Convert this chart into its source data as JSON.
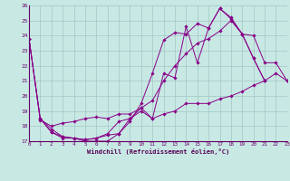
{
  "xlabel": "Windchill (Refroidissement éolien,°C)",
  "xlim": [
    0,
    23
  ],
  "ylim": [
    17,
    26
  ],
  "xticks": [
    0,
    1,
    2,
    3,
    4,
    5,
    6,
    7,
    8,
    9,
    10,
    11,
    12,
    13,
    14,
    15,
    16,
    17,
    18,
    19,
    20,
    21,
    22,
    23
  ],
  "yticks": [
    17,
    18,
    19,
    20,
    21,
    22,
    23,
    24,
    25,
    26
  ],
  "bg_color": "#c8e8e4",
  "grid_color": "#a0c8c4",
  "line_color": "#880088",
  "lines": [
    {
      "x": [
        0,
        1,
        2,
        3,
        4,
        5,
        6,
        7,
        8,
        9,
        10,
        11,
        12,
        13,
        14,
        15,
        16,
        17,
        18,
        19,
        20,
        21
      ],
      "y": [
        23.8,
        18.5,
        17.6,
        17.2,
        17.2,
        17.0,
        17.0,
        17.0,
        17.5,
        18.3,
        19.5,
        21.5,
        23.7,
        24.2,
        24.1,
        24.8,
        24.5,
        25.8,
        25.2,
        24.1,
        22.5,
        21.0
      ]
    },
    {
      "x": [
        0,
        1,
        2,
        3,
        4,
        5,
        6,
        7,
        8,
        9,
        10,
        11,
        12,
        13,
        14,
        15,
        16,
        17,
        18,
        19,
        20,
        21
      ],
      "y": [
        23.8,
        18.5,
        17.6,
        17.3,
        17.2,
        17.1,
        17.2,
        17.5,
        18.3,
        18.5,
        19.2,
        18.5,
        21.5,
        21.2,
        24.6,
        22.2,
        24.5,
        25.8,
        25.1,
        24.1,
        22.5,
        21.0
      ]
    },
    {
      "x": [
        1,
        2,
        3,
        4,
        5,
        6,
        7,
        8,
        9,
        10,
        11,
        12,
        13,
        14,
        15,
        16,
        17,
        18,
        19,
        20,
        21,
        22,
        23
      ],
      "y": [
        18.5,
        17.8,
        17.3,
        17.2,
        17.1,
        17.2,
        17.4,
        17.5,
        18.5,
        19.0,
        18.5,
        18.8,
        19.0,
        19.5,
        19.5,
        19.5,
        19.8,
        20.0,
        20.3,
        20.7,
        21.0,
        21.5,
        21.0
      ]
    },
    {
      "x": [
        0,
        1,
        2,
        3,
        4,
        5,
        6,
        7,
        8,
        9,
        10,
        11,
        12,
        13,
        14,
        15,
        16,
        17,
        18,
        19,
        20,
        21,
        22,
        23
      ],
      "y": [
        23.8,
        18.4,
        18.0,
        18.2,
        18.3,
        18.5,
        18.6,
        18.5,
        18.8,
        18.8,
        19.2,
        19.7,
        21.0,
        22.0,
        22.8,
        23.5,
        23.8,
        24.3,
        25.0,
        24.1,
        24.0,
        22.2,
        22.2,
        21.0
      ]
    }
  ]
}
